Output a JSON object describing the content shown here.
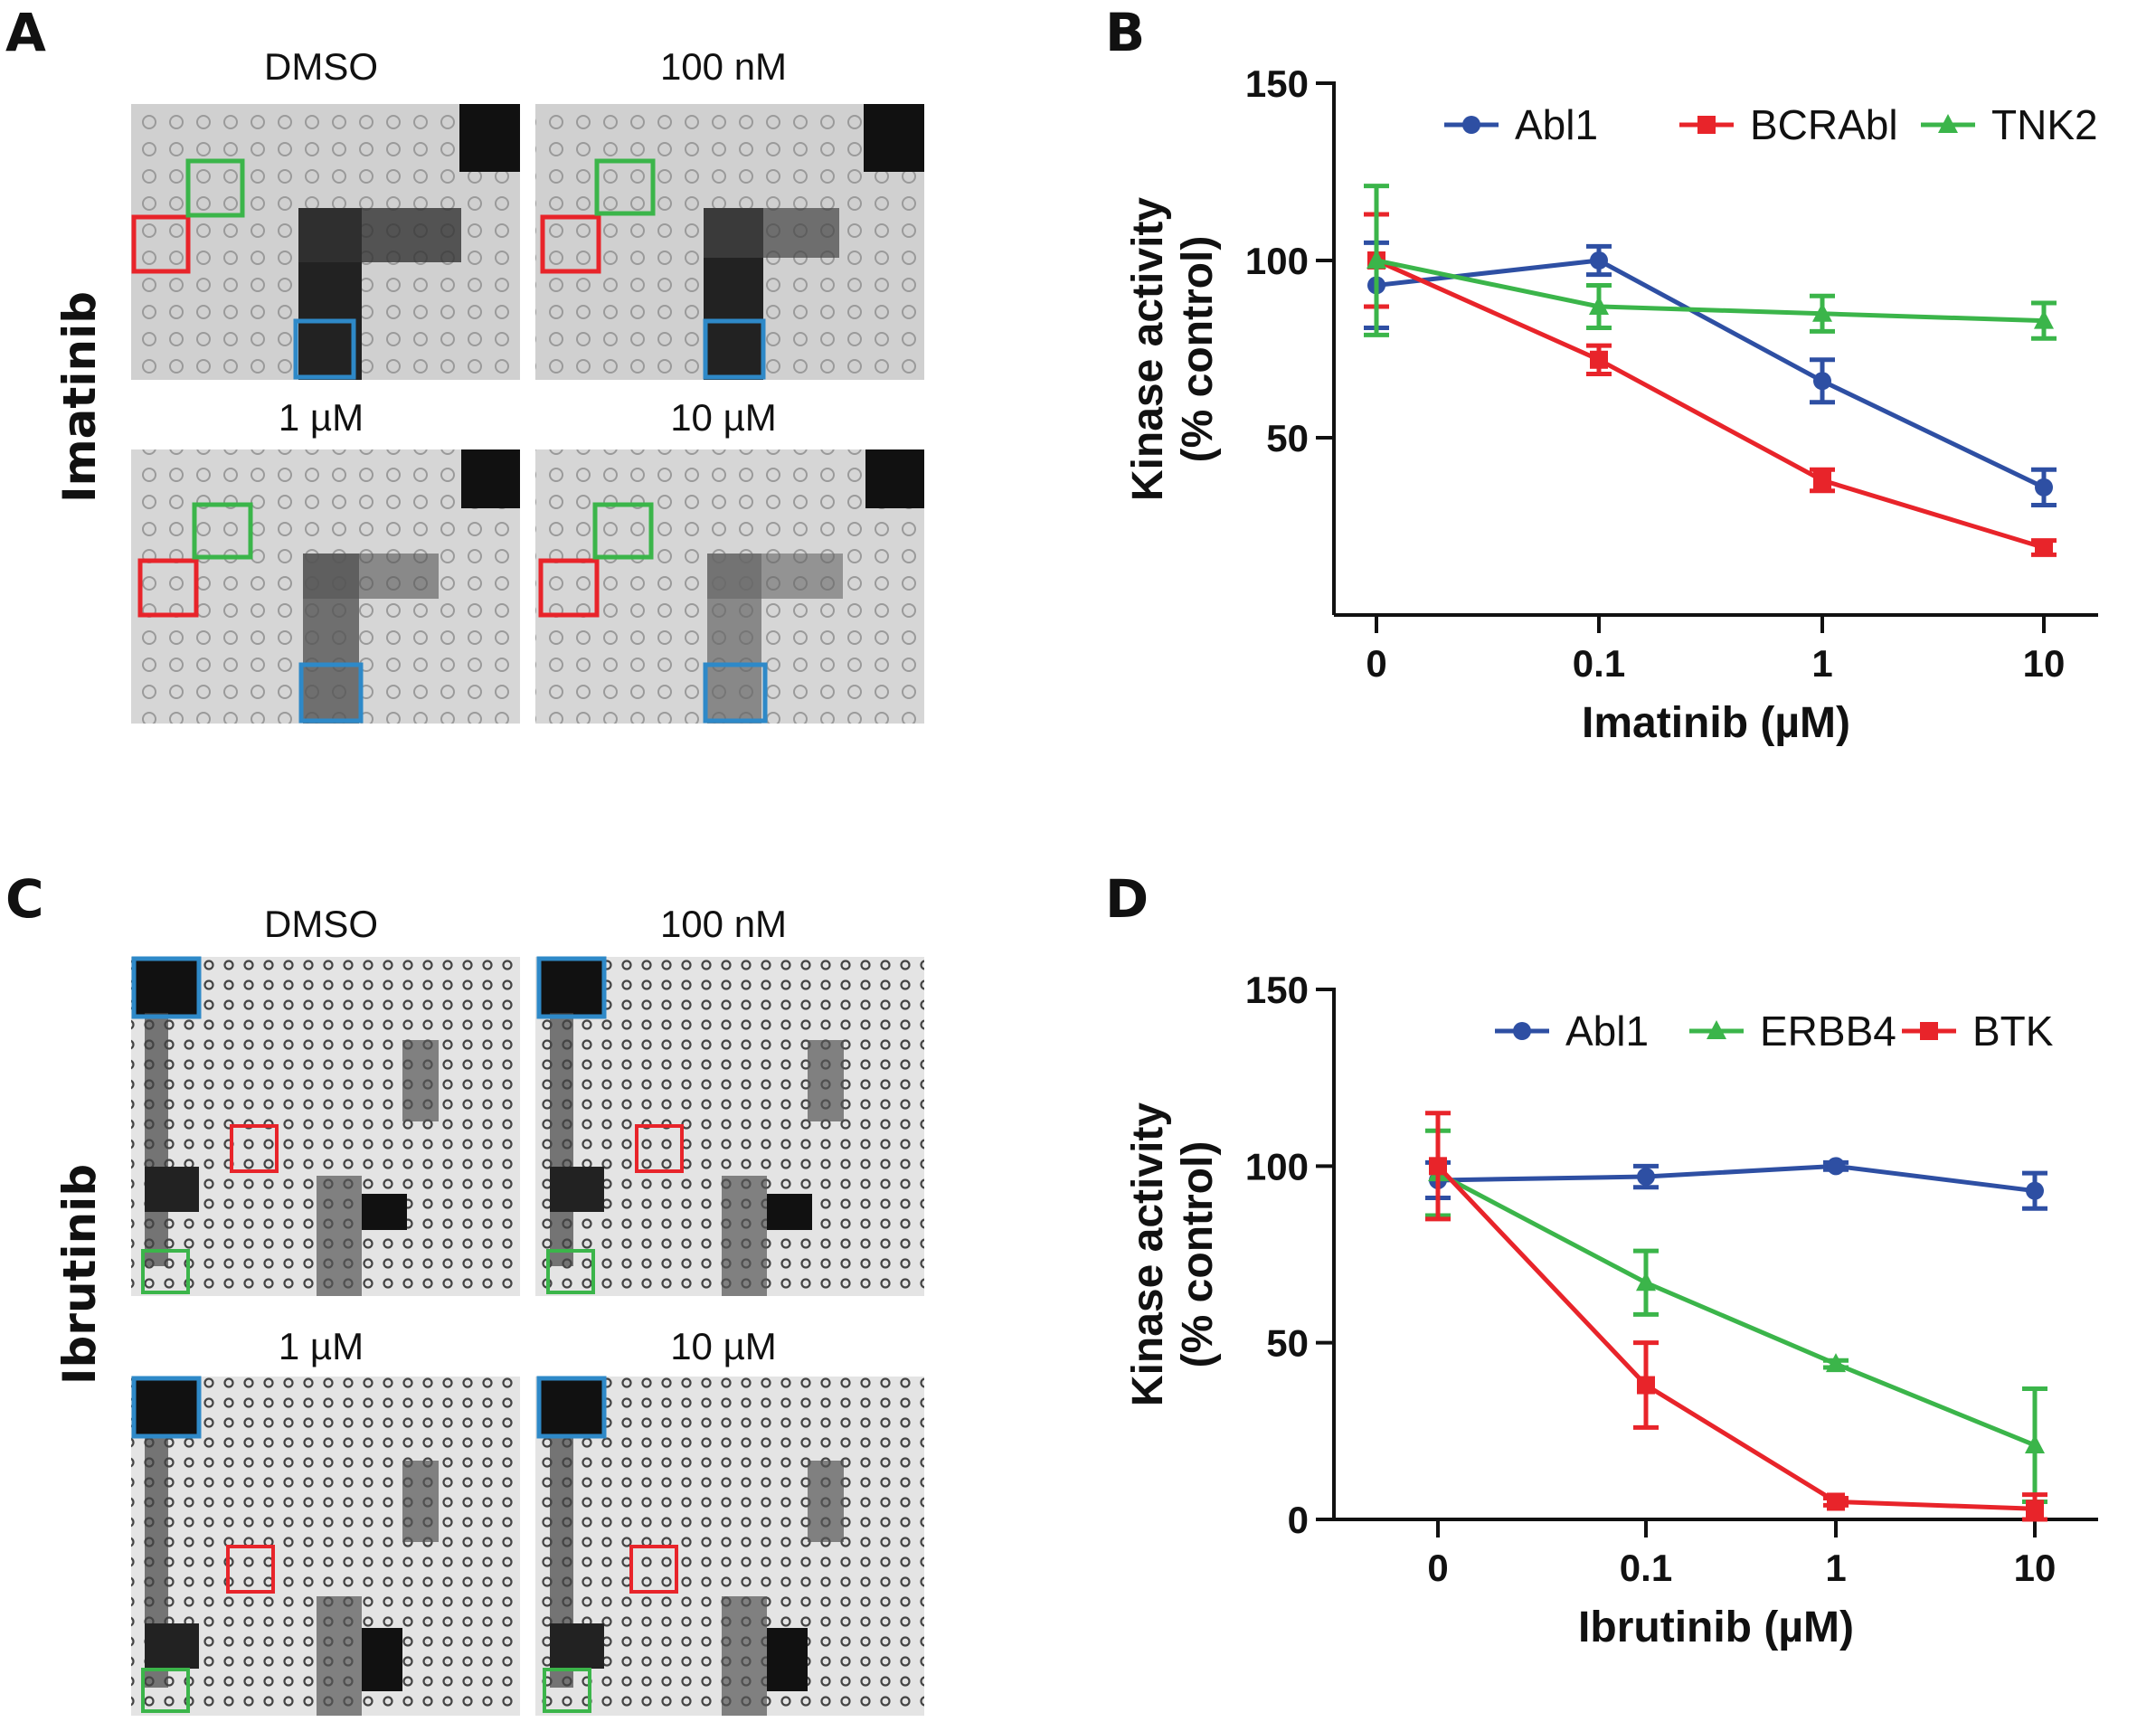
{
  "panels": {
    "A": {
      "letter": "A",
      "drug": "Imatinib",
      "conditions": [
        "DMSO",
        "100 nM",
        "1 µM",
        "10 µM"
      ]
    },
    "C": {
      "letter": "C",
      "drug": "Ibrutinib",
      "conditions": [
        "DMSO",
        "100 nM",
        "1 µM",
        "10 µM"
      ]
    },
    "B": {
      "letter": "B"
    },
    "D": {
      "letter": "D"
    }
  },
  "colors": {
    "blue": "#2e4fa3",
    "red": "#e8242a",
    "green": "#3bb54a",
    "axis": "#111111"
  },
  "chart_data": [
    {
      "id": "B",
      "type": "line",
      "xlabel": "Imatinib (µM)",
      "ylabel_line1": "Kinase activity",
      "ylabel_line2": "(% control)",
      "categories": [
        "0",
        "0.1",
        "1",
        "10"
      ],
      "ylim": [
        0,
        150
      ],
      "yticks": [
        150,
        100,
        50
      ],
      "series": [
        {
          "name": "Abl1",
          "marker": "circle",
          "color": "#2e4fa3",
          "values": [
            93,
            100,
            66,
            36
          ],
          "errors": [
            12,
            4,
            6,
            5
          ]
        },
        {
          "name": "BCRAbl",
          "marker": "square",
          "color": "#e8242a",
          "values": [
            100,
            72,
            38,
            19
          ],
          "errors": [
            13,
            4,
            3,
            2
          ]
        },
        {
          "name": "TNK2",
          "marker": "triangle",
          "color": "#3bb54a",
          "values": [
            100,
            87,
            85,
            83
          ],
          "errors": [
            21,
            6,
            5,
            5
          ]
        }
      ]
    },
    {
      "id": "D",
      "type": "line",
      "xlabel": "Ibrutinib (µM)",
      "ylabel_line1": "Kinase activity",
      "ylabel_line2": "(% control)",
      "categories": [
        "0",
        "0.1",
        "1",
        "10"
      ],
      "ylim": [
        0,
        150
      ],
      "yticks": [
        150,
        100,
        50,
        0
      ],
      "series": [
        {
          "name": "Abl1",
          "marker": "circle",
          "color": "#2e4fa3",
          "values": [
            96,
            97,
            100,
            93
          ],
          "errors": [
            5,
            3,
            1,
            5
          ]
        },
        {
          "name": "ERBB4",
          "marker": "triangle",
          "color": "#3bb54a",
          "values": [
            98,
            67,
            44,
            21
          ],
          "errors": [
            12,
            9,
            1,
            16
          ]
        },
        {
          "name": "BTK",
          "marker": "square",
          "color": "#e8242a",
          "values": [
            100,
            38,
            5,
            3
          ],
          "errors": [
            15,
            12,
            1,
            4
          ]
        }
      ]
    }
  ]
}
